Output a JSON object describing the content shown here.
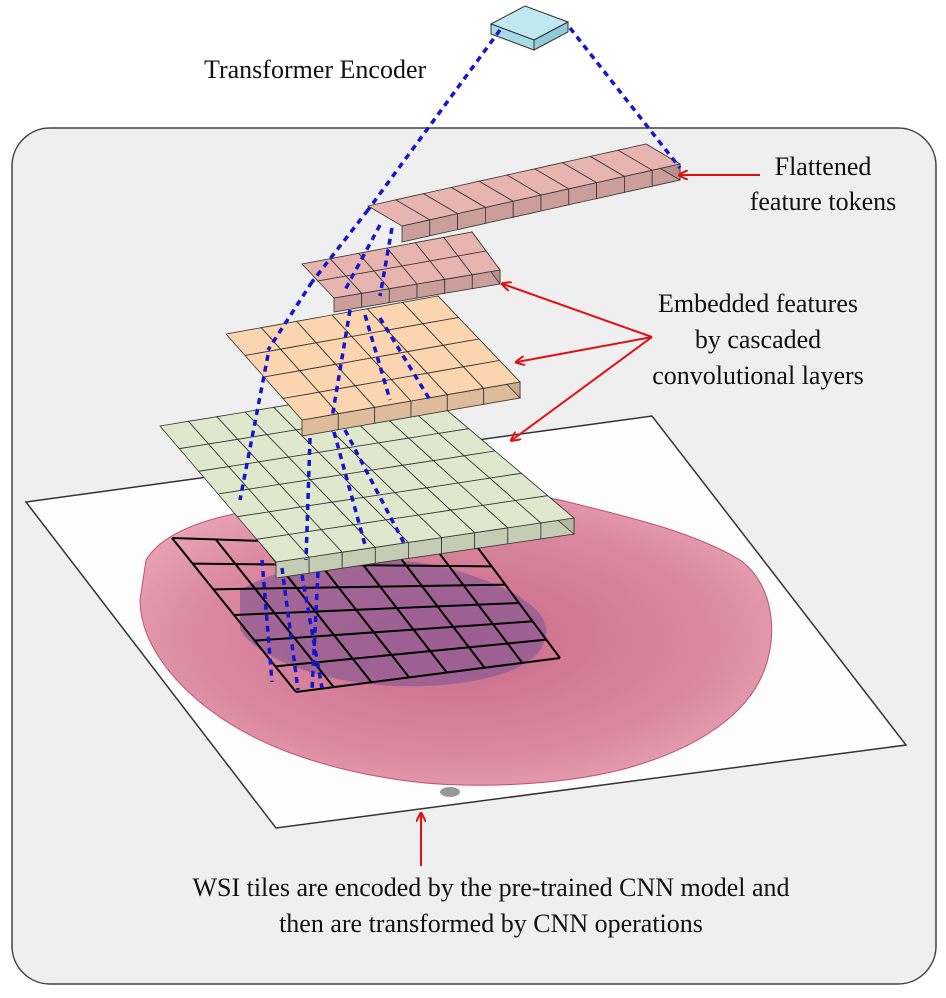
{
  "labels": {
    "encoder": "Transformer Encoder",
    "tokens_line1": "Flattened",
    "tokens_line2": "feature tokens",
    "embedded_line1": "Embedded features",
    "embedded_line2": "by cascaded",
    "embedded_line3": "convolutional layers",
    "caption_line1": "WSI tiles are encoded by the pre-trained CNN model and",
    "caption_line2": "then are transformed by CNN operations"
  },
  "colors": {
    "panel_bg": "#efefef",
    "panel_border": "#444444",
    "encoder_block": "#a6dce8",
    "token_block": "#e8b4b0",
    "layer_pink": "#e8b4b0",
    "layer_orange": "#fbd4b0",
    "layer_green": "#dfe8cc",
    "arrows": "#e01010",
    "dashes": "#1515d0",
    "tissue": "#d87a92",
    "tissue_dark": "#7a4a8a"
  },
  "grids": {
    "tokens": {
      "cols": 10
    },
    "layer_pink": {
      "cols": 6,
      "rows": 2
    },
    "layer_orange": {
      "cols": 6,
      "rows": 4
    },
    "layer_green": {
      "cols": 9,
      "rows": 6
    },
    "tile_grid": {
      "cols": 7,
      "rows": 6
    }
  }
}
